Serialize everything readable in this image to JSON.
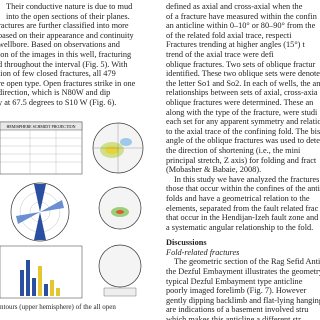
{
  "left_column": {
    "lines": [
      "Their conductive nature is due to mud",
      "into the open sections of their planes.",
      "ractures are further classified into more",
      "based on their appearance and continuity",
      "wellbore. Based on observations and",
      "ion of the images in this well, fracturing",
      "d throughout the interval (Fig. 5). With",
      "tion of few closed fractures, all 479",
      "re open type. Open fractures strike in one",
      "direction, which is N80W and dip",
      "y at 67.5 degrees to S10 W (Fig. 6)."
    ]
  },
  "figure": {
    "header": "HEMISPHERE SCHMIDT PROJECTION",
    "caption": "ntours (upper hemisphere) of the all open"
  },
  "right_column": {
    "lines_a": [
      "defined as axial and cross-axial when the",
      "of a fracture have measured within the confin",
      "an anticline within 0–10° or 80–90° from the",
      "of the related fold axial trace, respecti",
      "Fractures trending at higher angles (15°) t",
      "trend of the axial trace were defi",
      "oblique fractures. Two sets of oblique fractur",
      "identified. These two oblique sets were denoted",
      "the letter So1 and So2. In each of wells, the an",
      "relationships between sets of axial, cross-axia",
      "oblique fractures were determined. These an",
      "along with the type of the fracture, were studi",
      "each set for any apparent symmetry and relatio",
      "to the axial trace of the confining fold. The bis",
      "angle of the oblique fractures was used to dete",
      "the direction of shortening (i.e., the mini",
      "principal stretch, Z axis) for folding and fract",
      "(Mobasher & Babaie, 2008).",
      "In this study we have analyzed the fractures",
      "those that occur within the confines of the anti",
      "folds and have a geometrical relation to the",
      "elements, separated from the fault related frac",
      "that occur in the Hendijan-Izeh fault zone and",
      "a systematic angular relationship to the fold."
    ],
    "heading": "Discussions",
    "subheading": "Fold-related fractures",
    "lines_b": [
      "The geometric section of the Rag Sefid Anticli",
      "the Dezful Embayment illustrates the geometry",
      "typical Dezful Embayment type anticline",
      "poorly imaged forelimb (Fig. 7). However",
      "gently dipping backlimb and flat-lying hanging",
      "are indications of a basement involved stru",
      "which makes this anticline a different str"
    ]
  }
}
